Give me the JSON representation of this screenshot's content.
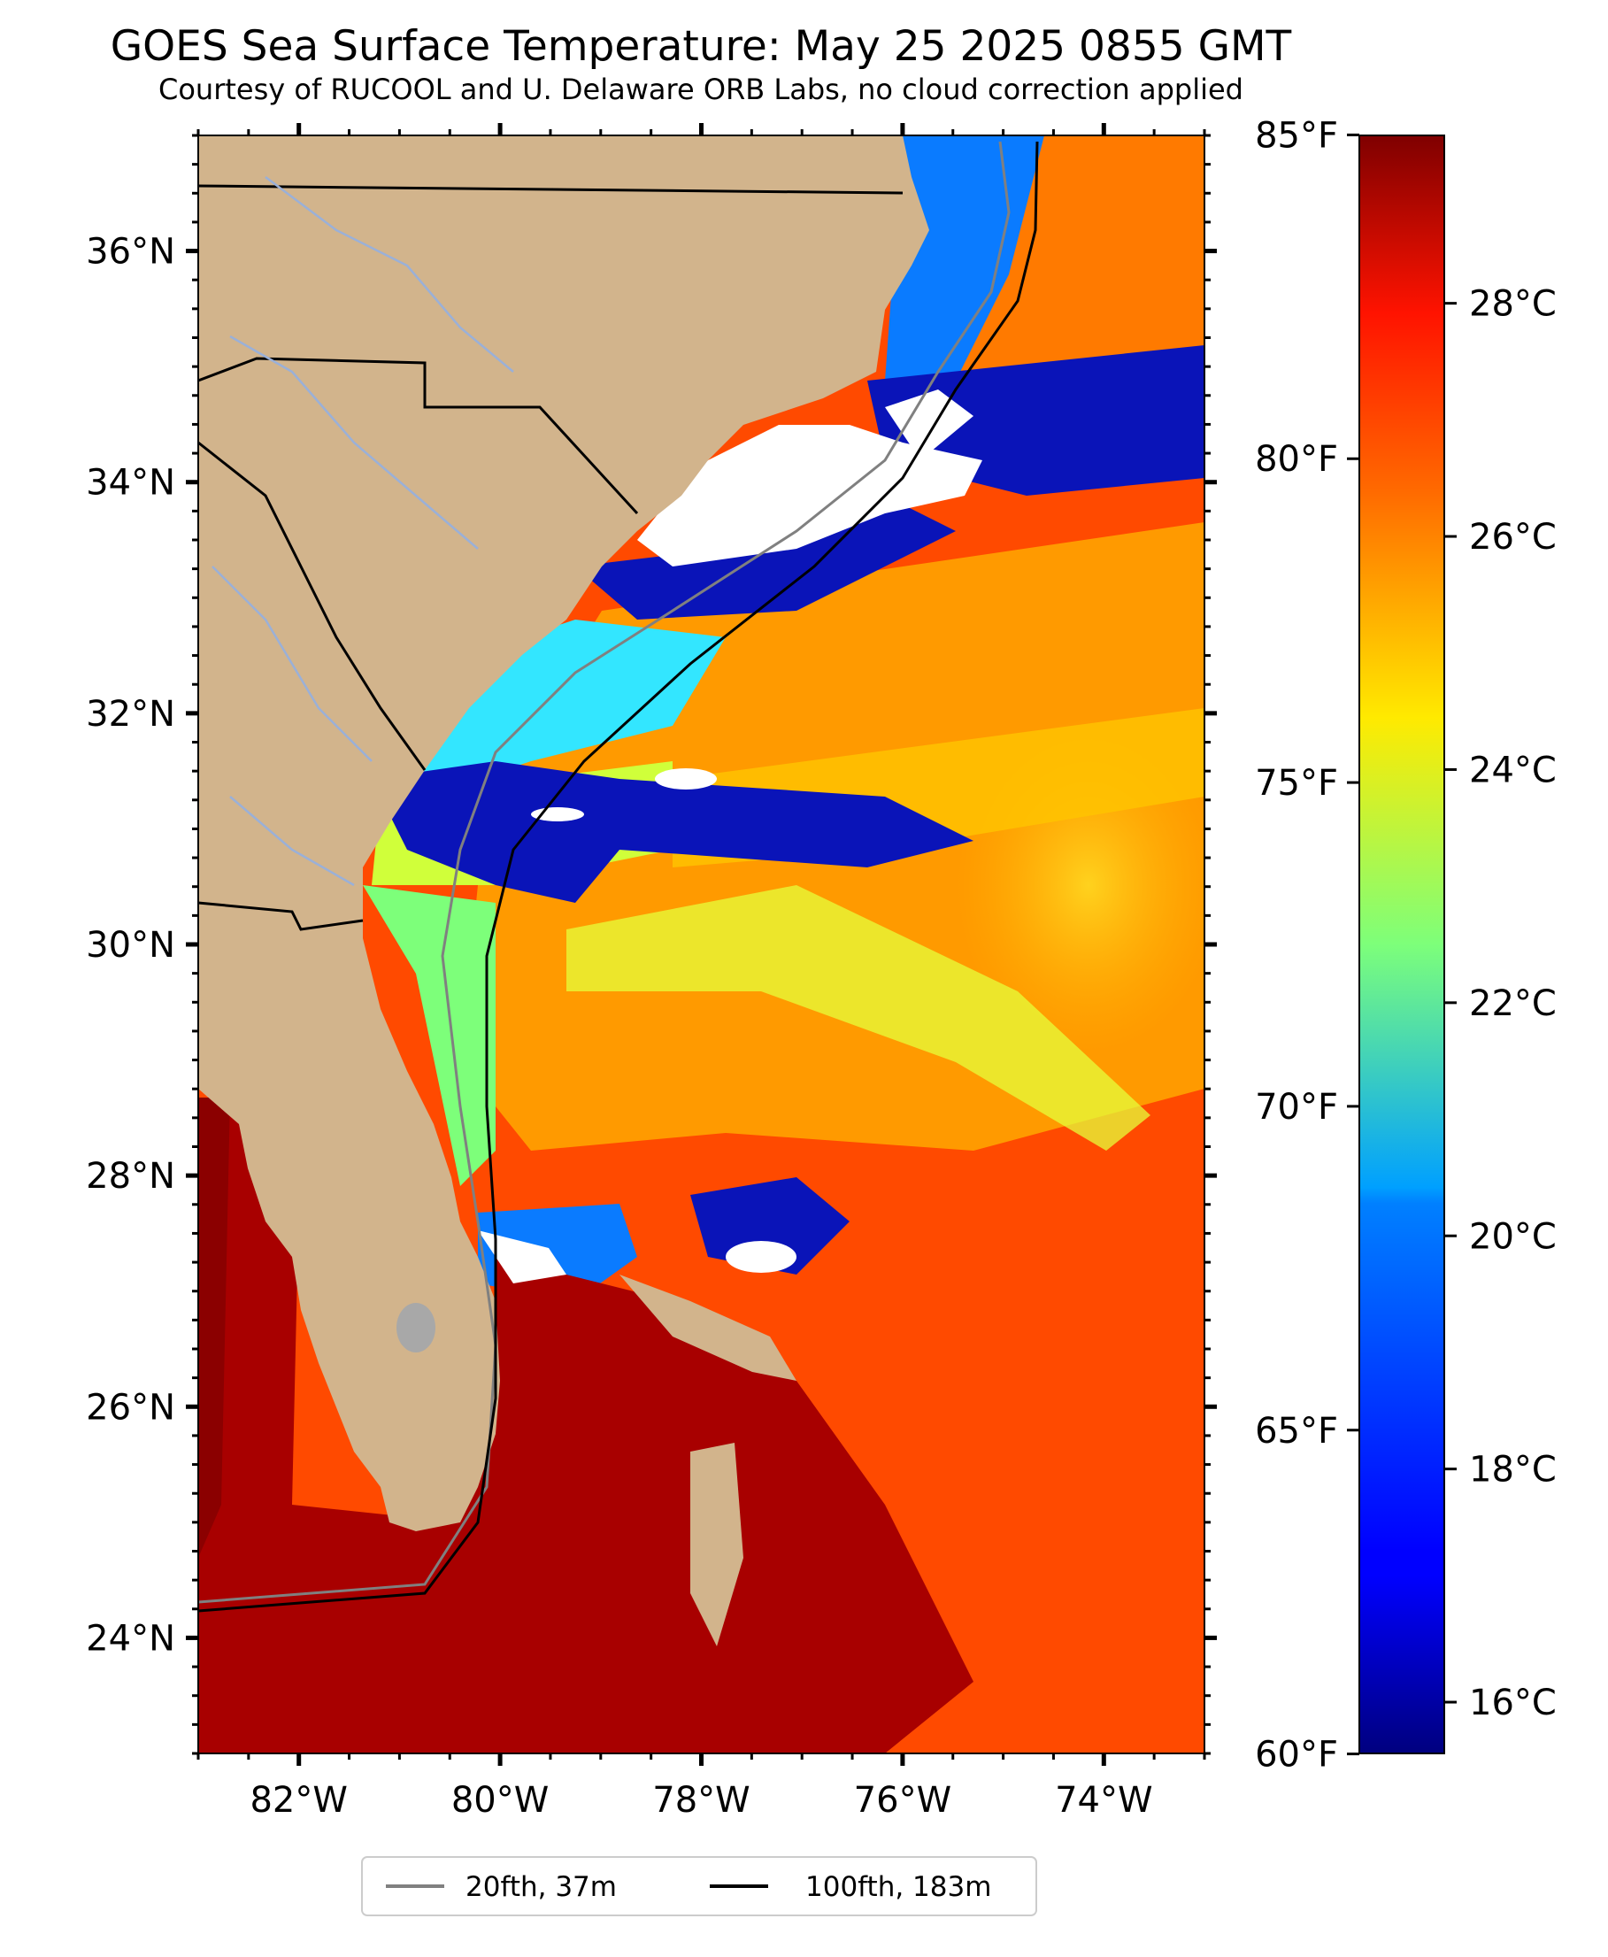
{
  "title": "GOES Sea Surface Temperature: May 25 2025 0855 GMT",
  "subtitle": "Courtesy of RUCOOL and U. Delaware ORB Labs, no cloud correction applied",
  "map": {
    "lon_range": [
      -83.0,
      -73.0
    ],
    "lat_range": [
      23.0,
      37.0
    ],
    "lon_ticks": [
      {
        "value": -82,
        "label": "82°W"
      },
      {
        "value": -80,
        "label": "80°W"
      },
      {
        "value": -78,
        "label": "78°W"
      },
      {
        "value": -76,
        "label": "76°W"
      },
      {
        "value": -74,
        "label": "74°W"
      }
    ],
    "lat_ticks": [
      {
        "value": 36,
        "label": "36°N"
      },
      {
        "value": 34,
        "label": "34°N"
      },
      {
        "value": 32,
        "label": "32°N"
      },
      {
        "value": 30,
        "label": "30°N"
      },
      {
        "value": 28,
        "label": "28°N"
      },
      {
        "value": 26,
        "label": "26°N"
      },
      {
        "value": 24,
        "label": "24°N"
      }
    ],
    "colors": {
      "land": "#d2b48c",
      "cloud_mask": "#ffffff",
      "warm_sea": "#ff4500",
      "gulf_stream": "#8b0000",
      "state_lines": "#000000",
      "rivers": "#9ab0d8",
      "isobath_20fth": "#808080",
      "isobath_100fth": "#000000"
    }
  },
  "colorbar": {
    "cmap": "jet",
    "range_c": [
      15.56,
      29.44
    ],
    "fahrenheit_ticks": [
      {
        "value": 85,
        "label": "85°F"
      },
      {
        "value": 80,
        "label": "80°F"
      },
      {
        "value": 75,
        "label": "75°F"
      },
      {
        "value": 70,
        "label": "70°F"
      },
      {
        "value": 65,
        "label": "65°F"
      },
      {
        "value": 60,
        "label": "60°F"
      }
    ],
    "celsius_ticks": [
      {
        "value": 28,
        "label": "28°C"
      },
      {
        "value": 26,
        "label": "26°C"
      },
      {
        "value": 24,
        "label": "24°C"
      },
      {
        "value": 22,
        "label": "22°C"
      },
      {
        "value": 20,
        "label": "20°C"
      },
      {
        "value": 18,
        "label": "18°C"
      },
      {
        "value": 16,
        "label": "16°C"
      }
    ]
  },
  "legend": {
    "items": [
      {
        "label": "20fth, 37m",
        "color": "#808080"
      },
      {
        "label": "100fth, 183m",
        "color": "#000000"
      }
    ]
  }
}
